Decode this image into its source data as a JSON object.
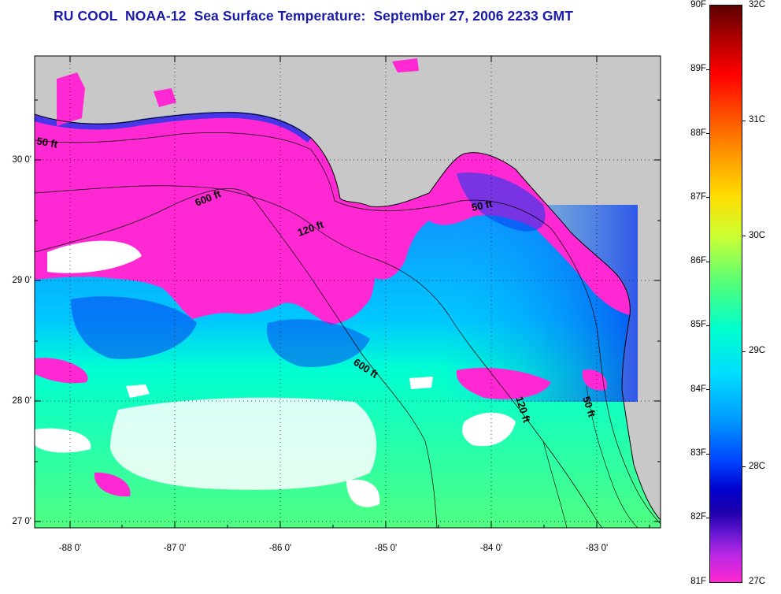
{
  "title": "RU COOL  NOAA-12  Sea Surface Temperature:  September 27, 2006 2233 GMT",
  "colors": {
    "title": "#1a1aa8",
    "land": "#c8c8c8",
    "hot_pink": "#ff28d2",
    "cloud": "#ffffff"
  },
  "axes": {
    "lat_labels": [
      "30 0'",
      "29 0'",
      "28 0'",
      "27 0'"
    ],
    "lon_labels": [
      "-88 0'",
      "-87 0'",
      "-86 0'",
      "-85 0'",
      "-84 0'",
      "-83 0'"
    ]
  },
  "contours": [
    "50 ft",
    "600 ft",
    "120 ft",
    "50 ft",
    "600 ft",
    "120 ft",
    "50 ft"
  ],
  "colorbar": {
    "f_labels": [
      "90F",
      "89F",
      "88F",
      "87F",
      "86F",
      "85F",
      "84F",
      "83F",
      "82F",
      "81F"
    ],
    "c_labels": [
      "32C",
      "31C",
      "30C",
      "29C",
      "28C",
      "27C"
    ]
  }
}
